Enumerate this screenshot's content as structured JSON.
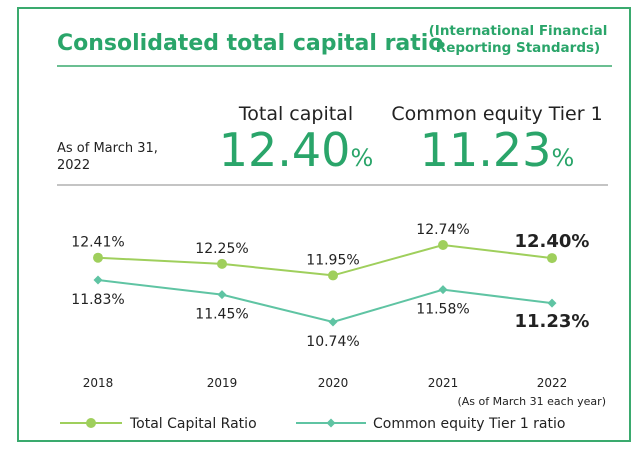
{
  "header": {
    "title": "Consolidated total capital ratio",
    "subtitle": [
      "(International Financial",
      "Reporting Standards)"
    ]
  },
  "headline": {
    "as_of": [
      "As of March 31,",
      "2022"
    ],
    "items": [
      {
        "label": "Total capital",
        "value": "12.40",
        "unit": "%"
      },
      {
        "label": "Common equity Tier 1",
        "value": "11.23",
        "unit": "%"
      }
    ]
  },
  "chart_data": {
    "type": "line",
    "categories": [
      "2018",
      "2019",
      "2020",
      "2021",
      "2022"
    ],
    "annotation": "(As of March 31 each year)",
    "series": [
      {
        "name": "Total Capital Ratio",
        "color": "#9fcf5c",
        "marker": "circle",
        "values": [
          12.41,
          12.25,
          11.95,
          12.74,
          12.4
        ],
        "value_labels": [
          "12.41%",
          "12.25%",
          "11.95%",
          "12.74%",
          "12.40%"
        ]
      },
      {
        "name": "Common equity Tier 1 ratio",
        "color": "#5fc4a3",
        "marker": "diamond",
        "values": [
          11.83,
          11.45,
          10.74,
          11.58,
          11.23
        ],
        "value_labels": [
          "11.83%",
          "11.45%",
          "10.74%",
          "11.58%",
          "11.23%"
        ]
      }
    ]
  }
}
